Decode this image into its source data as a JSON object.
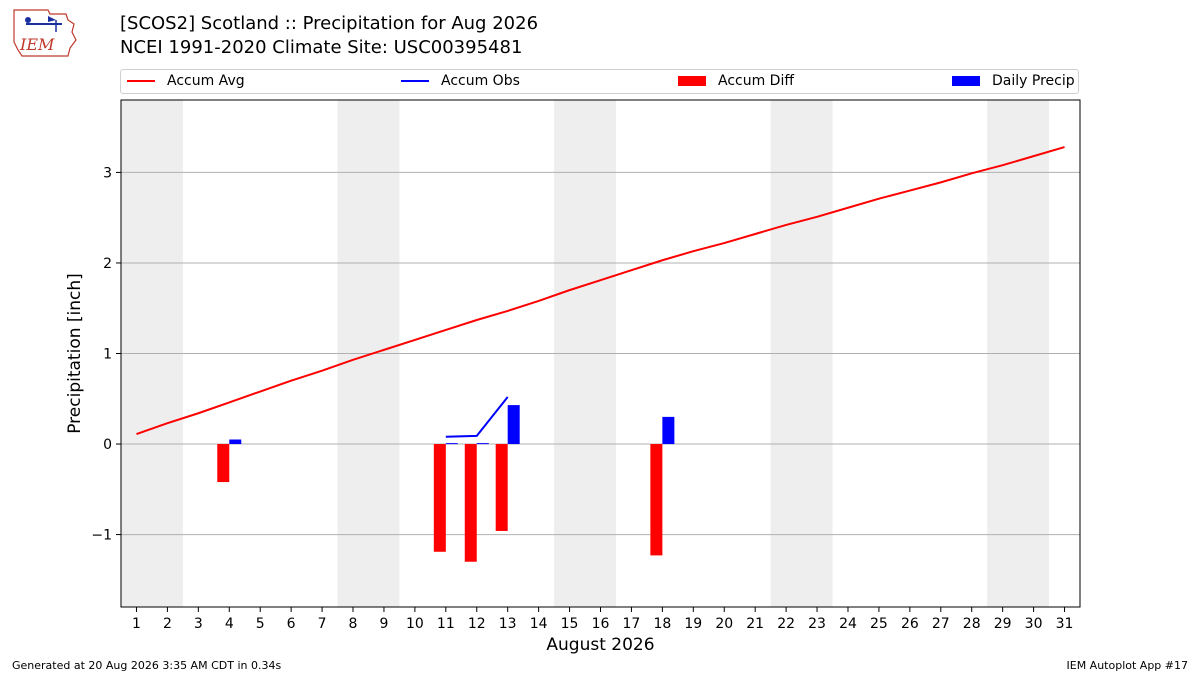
{
  "header": {
    "logo_text": "IEM",
    "title_line1": "[SCOS2] Scotland :: Precipitation for Aug 2026",
    "title_line2": "NCEI 1991-2020 Climate Site: USC00395481"
  },
  "footer": {
    "generated": "Generated at 20 Aug 2026 3:35 AM CDT in 0.34s",
    "app": "IEM Autoplot App #17"
  },
  "colors": {
    "accum_avg": "#ff0000",
    "accum_obs": "#0000ff",
    "accum_diff": "#ff0000",
    "daily_precip": "#0000ff",
    "weekend_shade": "#eeeeee",
    "grid": "#b0b0b0"
  },
  "chart_data": {
    "type": "bar",
    "xlabel": "August 2026",
    "ylabel": "Precipitation [inch]",
    "xlim": [
      0.5,
      31.5
    ],
    "ylim": [
      -1.8,
      3.8
    ],
    "yticks": [
      -1,
      0,
      1,
      2,
      3
    ],
    "ytick_labels": [
      "−1",
      "0",
      "1",
      "2",
      "3"
    ],
    "xticks": [
      1,
      2,
      3,
      4,
      5,
      6,
      7,
      8,
      9,
      10,
      11,
      12,
      13,
      14,
      15,
      16,
      17,
      18,
      19,
      20,
      21,
      22,
      23,
      24,
      25,
      26,
      27,
      28,
      29,
      30,
      31
    ],
    "grid": "horizontal",
    "legend_position": "top",
    "legend": [
      "Accum Avg",
      "Accum Obs",
      "Accum Diff",
      "Daily Precip"
    ],
    "weekend_shading": [
      [
        0.5,
        2.5
      ],
      [
        7.5,
        9.5
      ],
      [
        14.5,
        16.5
      ],
      [
        21.5,
        23.5
      ],
      [
        28.5,
        30.5
      ]
    ],
    "accum_avg": {
      "name": "Accum Avg",
      "x": [
        1,
        2,
        3,
        4,
        5,
        6,
        7,
        8,
        9,
        10,
        11,
        12,
        13,
        14,
        15,
        16,
        17,
        18,
        19,
        20,
        21,
        22,
        23,
        24,
        25,
        26,
        27,
        28,
        29,
        30,
        31
      ],
      "y": [
        0.11,
        0.23,
        0.34,
        0.46,
        0.58,
        0.7,
        0.81,
        0.93,
        1.04,
        1.15,
        1.26,
        1.37,
        1.47,
        1.58,
        1.7,
        1.81,
        1.92,
        2.03,
        2.13,
        2.22,
        2.32,
        2.42,
        2.51,
        2.61,
        2.71,
        2.8,
        2.89,
        2.99,
        3.08,
        3.18,
        3.28
      ]
    },
    "accum_obs": {
      "name": "Accum Obs",
      "x": [
        11,
        12,
        13
      ],
      "y": [
        0.08,
        0.09,
        0.52
      ]
    },
    "accum_diff": {
      "name": "Accum Diff",
      "x": [
        4,
        11,
        12,
        13,
        18
      ],
      "y": [
        -0.42,
        -1.19,
        -1.3,
        -0.96,
        -1.23
      ]
    },
    "daily_precip": {
      "name": "Daily Precip",
      "x": [
        4,
        11,
        12,
        13,
        18
      ],
      "y": [
        0.05,
        0.01,
        0.01,
        0.43,
        0.3
      ]
    }
  }
}
